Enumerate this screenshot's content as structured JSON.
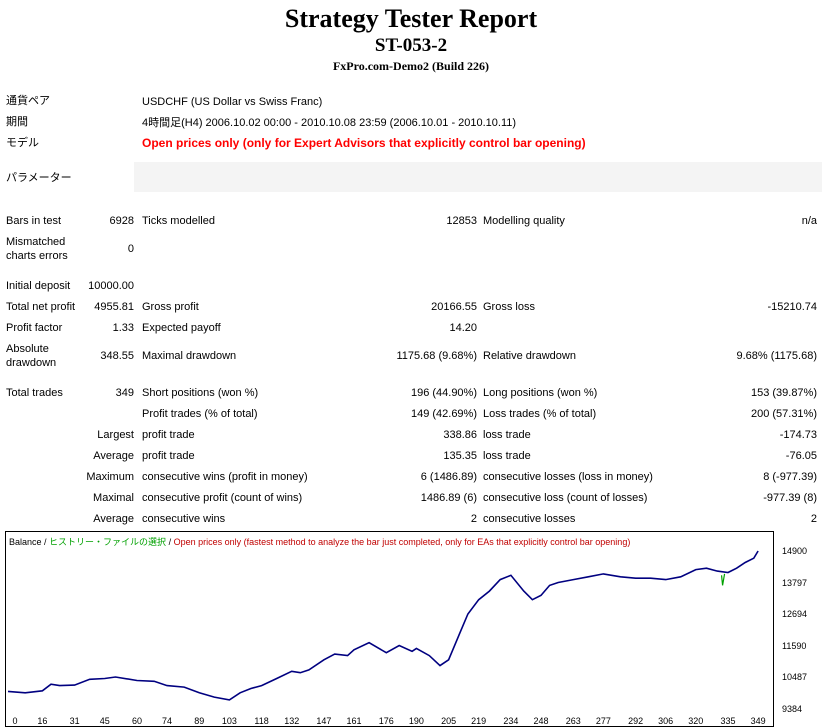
{
  "header": {
    "title": "Strategy Tester Report",
    "ea_name": "ST-053-2",
    "server": "FxPro.com-Demo2 (Build 226)"
  },
  "info": {
    "symbol_label": "通貨ペア",
    "symbol_value": "USDCHF (US Dollar vs Swiss Franc)",
    "period_label": "期間",
    "period_value": "4時間足(H4) 2006.10.02 00:00 - 2010.10.08 23:59 (2006.10.01 - 2010.10.11)",
    "model_label": "モデル",
    "model_value": "Open prices only (only for Expert Advisors that explicitly control bar opening)",
    "params_label": "パラメーター"
  },
  "stats": {
    "bars_label": "Bars in test",
    "bars_value": "6928",
    "ticks_label": "Ticks modelled",
    "ticks_value": "12853",
    "quality_label": "Modelling quality",
    "quality_value": "n/a",
    "mismatched_label_1": "Mismatched",
    "mismatched_label_2": "charts errors",
    "mismatched_value": "0",
    "deposit_label": "Initial deposit",
    "deposit_value": "10000.00",
    "net_profit_label": "Total net profit",
    "net_profit_value": "4955.81",
    "gross_profit_label": "Gross profit",
    "gross_profit_value": "20166.55",
    "gross_loss_label": "Gross loss",
    "gross_loss_value": "-15210.74",
    "profit_factor_label": "Profit factor",
    "profit_factor_value": "1.33",
    "payoff_label": "Expected payoff",
    "payoff_value": "14.20",
    "abs_dd_label_1": "Absolute",
    "abs_dd_label_2": "drawdown",
    "abs_dd_value": "348.55",
    "max_dd_label": "Maximal drawdown",
    "max_dd_value": "1175.68 (9.68%)",
    "rel_dd_label": "Relative drawdown",
    "rel_dd_value": "9.68% (1175.68)",
    "total_trades_label": "Total trades",
    "total_trades_value": "349",
    "short_label": "Short positions (won %)",
    "short_value": "196 (44.90%)",
    "long_label": "Long positions (won %)",
    "long_value": "153 (39.87%)",
    "profit_trades_label": "Profit trades (% of total)",
    "profit_trades_value": "149 (42.69%)",
    "loss_trades_label": "Loss trades (% of total)",
    "loss_trades_value": "200 (57.31%)",
    "largest_label": "Largest",
    "largest_profit_label": "profit trade",
    "largest_profit_value": "338.86",
    "largest_loss_label": "loss trade",
    "largest_loss_value": "-174.73",
    "average_label": "Average",
    "average_profit_label": "profit trade",
    "average_profit_value": "135.35",
    "average_loss_label": "loss trade",
    "average_loss_value": "-76.05",
    "maximum_label": "Maximum",
    "max_cons_wins_label": "consecutive wins (profit in money)",
    "max_cons_wins_value": "6 (1486.89)",
    "max_cons_losses_label": "consecutive losses (loss in money)",
    "max_cons_losses_value": "8 (-977.39)",
    "maximal_label": "Maximal",
    "maximal_profit_label": "consecutive profit (count of wins)",
    "maximal_profit_value": "1486.89 (6)",
    "maximal_loss_label": "consecutive loss (count of losses)",
    "maximal_loss_value": "-977.39 (8)",
    "avg_cons_label": "Average",
    "avg_cons_wins_label": "consecutive wins",
    "avg_cons_wins_value": "2",
    "avg_cons_losses_label": "consecutive losses",
    "avg_cons_losses_value": "2"
  },
  "legend": {
    "balance": "Balance",
    "sep": " / ",
    "history": "ヒストリー・ファイルの選択",
    "mode": "Open prices only (fastest method to analyze the bar just completed, only for EAs that explicitly control bar opening)"
  },
  "colors": {
    "balance_line": "#000080",
    "equity_spike": "#00a000",
    "model_text": "#ff0000"
  },
  "chart_data": {
    "type": "line",
    "x_ticks": [
      "0",
      "16",
      "31",
      "45",
      "60",
      "74",
      "89",
      "103",
      "118",
      "132",
      "147",
      "161",
      "176",
      "190",
      "205",
      "219",
      "234",
      "248",
      "263",
      "277",
      "292",
      "306",
      "320",
      "335",
      "349"
    ],
    "y_ticks": [
      "14900",
      "13797",
      "12694",
      "11590",
      "10487",
      "9384"
    ],
    "ylim": [
      9384,
      14900
    ],
    "xlim": [
      0,
      355
    ],
    "series": [
      {
        "name": "Balance",
        "x": [
          0,
          8,
          16,
          20,
          24,
          31,
          38,
          45,
          50,
          60,
          68,
          74,
          82,
          89,
          96,
          103,
          108,
          113,
          118,
          125,
          132,
          136,
          140,
          147,
          152,
          158,
          161,
          168,
          176,
          182,
          188,
          190,
          196,
          201,
          205,
          210,
          214,
          219,
          224,
          229,
          234,
          240,
          244,
          248,
          252,
          256,
          263,
          270,
          277,
          285,
          292,
          299,
          306,
          313,
          320,
          325,
          330,
          335,
          339,
          343,
          347,
          349
        ],
        "values": [
          10000,
          9950,
          10020,
          10250,
          10200,
          10220,
          10420,
          10450,
          10500,
          10380,
          10350,
          10200,
          10150,
          9950,
          9800,
          9700,
          9950,
          10100,
          10200,
          10450,
          10700,
          10650,
          10750,
          11100,
          11300,
          11250,
          11450,
          11700,
          11350,
          11600,
          11400,
          11500,
          11250,
          10900,
          11100,
          12000,
          12700,
          13200,
          13500,
          13900,
          14050,
          13500,
          13200,
          13350,
          13700,
          13800,
          13900,
          14000,
          14100,
          14000,
          13950,
          13950,
          13900,
          14000,
          14250,
          14300,
          14200,
          14150,
          14300,
          14500,
          14650,
          14900
        ]
      }
    ]
  }
}
